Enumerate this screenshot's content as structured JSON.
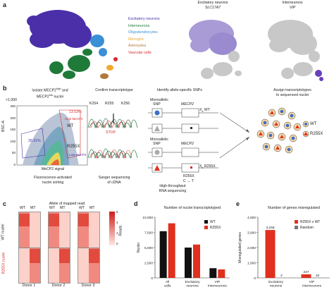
{
  "panel_a": {
    "letter": "a",
    "legend": [
      {
        "label": "Excitatory neurons",
        "color": "#4b2fa8"
      },
      {
        "label": "Interneurons",
        "color": "#1f7a3a"
      },
      {
        "label": "Oligodendrocytes",
        "color": "#3a8fd6"
      },
      {
        "label": "Microglia",
        "color": "#f0a830"
      },
      {
        "label": "Astrocytes",
        "color": "#b07a3a"
      },
      {
        "label": "Vascular cells",
        "color": "#d62b2b"
      }
    ],
    "tsne2_title": "Excitatory neurons",
    "tsne2_gene": "SLC17A7",
    "tsne3_title": "Interneurons",
    "tsne3_gene": "VIP"
  },
  "panel_b": {
    "letter": "b",
    "step1_title_a": "Isolate MECP2",
    "step1_title_sup_a": "high",
    "step1_title_b": "and",
    "step1_title_c": "MECP2",
    "step1_title_sup_c": "low",
    "step1_title_d": "nuclei",
    "y_axis_label": "BSC-A",
    "y_axis_scale": "×1,000",
    "x_axis_label": "MeCP2 signal",
    "y_ticks": [
      "250",
      "200",
      "150",
      "100",
      "50",
      "0"
    ],
    "gate_high_pct": "13.53%",
    "gate_high_label": "High MeCP2",
    "gate_mid_pct": "35.31%",
    "gate_low_label": "Low MeCP2",
    "gate_wt": "WT",
    "gate_r255x": "R255X",
    "step1_caption_1": "Fluorescence-activated",
    "step1_caption_2": "nuclei sorting",
    "step2_title": "Confirm transcriptotype",
    "codons": [
      "K254",
      "R255",
      "K256"
    ],
    "stop_label": "STOP",
    "step2_caption_1": "Sanger sequencing",
    "step2_caption_2": "of cDNA",
    "step3_title": "Identify allele-specific SNPs",
    "monoallelic": "Monoallelic",
    "snp": "SNP",
    "gene": "MECP2",
    "x_sub": "X",
    "x_wt_sub": "a",
    "x_wt": "WT",
    "x_mt_sub": "b",
    "x_mt": "R255X",
    "r255x_label": "R255X",
    "c_to_t": "C → T",
    "step3_caption_1": "High-throughput",
    "step3_caption_2": "RNA sequencing",
    "step4_title_1": "Assign transcriptotypes",
    "step4_title_2": "to sequenced nuclei",
    "legend_wt": "WT",
    "legend_r255x": "R255X"
  },
  "panel_c": {
    "letter": "c",
    "title": "Allele of mapped read",
    "col_labels": [
      "WT",
      "MT"
    ],
    "row_label_wt": "WT nuclei",
    "row_label_r255x": "R255X nuclei",
    "donors": [
      "Donor 1",
      "Donor 2",
      "Donor 3"
    ],
    "colorbar_title": "Reads",
    "colorbar_ticks": [
      "6",
      "4",
      "2",
      "0"
    ]
  },
  "panel_d": {
    "letter": "d",
    "title": "Number of nuclei transcriptotyped",
    "legend_wt": "WT",
    "legend_r255x": "R255X"
  },
  "panel_e": {
    "letter": "e",
    "title": "Number of genes misregulated",
    "legend_1": "R255X v WT",
    "legend_2": "Random"
  },
  "chart_data": [
    {
      "type": "bar",
      "panel": "d",
      "title": "Number of nuclei transcriptotyped",
      "categories": [
        "All cells",
        "Excitatory neurons",
        "VIP Interneurons"
      ],
      "series": [
        {
          "name": "WT",
          "color": "#111111",
          "values": [
            7700,
            5000,
            1600
          ]
        },
        {
          "name": "R255X",
          "color": "#e0301e",
          "values": [
            9000,
            5500,
            1400
          ]
        }
      ],
      "xlabel": "",
      "ylabel": "Nuclei",
      "ylim": [
        0,
        10000
      ],
      "yticks": [
        0,
        2500,
        5000,
        7500,
        10000
      ],
      "ytick_labels": [
        "0",
        "2,500",
        "5,000",
        "7,500",
        "10,000"
      ]
    },
    {
      "type": "bar",
      "panel": "e",
      "title": "Number of genes misregulated",
      "categories": [
        "Excitatory neurons",
        "VIP Interneurons"
      ],
      "series": [
        {
          "name": "R255X v WT",
          "color": "#e0301e",
          "values": [
            3158,
            237
          ]
        },
        {
          "name": "Random",
          "color": "#777777",
          "values": [
            2,
            10
          ]
        }
      ],
      "data_labels": [
        [
          "3,158",
          "237"
        ],
        [
          "2",
          "10"
        ]
      ],
      "xlabel": "",
      "ylabel": "Misregulated genes",
      "ylim": [
        0,
        4000
      ],
      "yticks": [
        0,
        1000,
        2000,
        3000,
        4000
      ],
      "ytick_labels": [
        "0",
        "1,000",
        "2,000",
        "3,000",
        "4,000"
      ]
    }
  ]
}
